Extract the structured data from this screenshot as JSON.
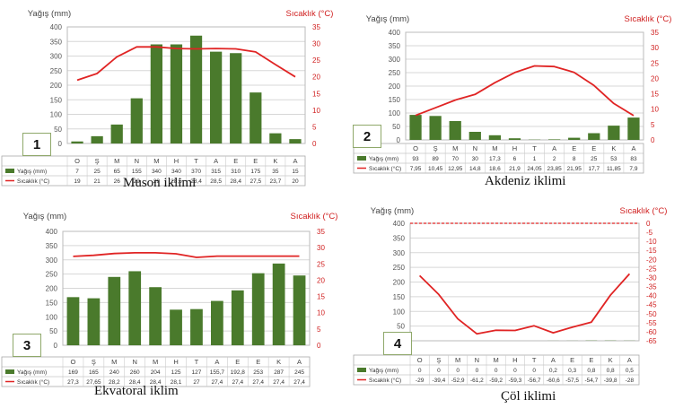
{
  "chart_data": [
    {
      "type": "bar",
      "number": "1",
      "caption": "Muson iklimi",
      "left_axis_title": "Yağış (mm)",
      "right_axis_title": "Sıcaklık (°C)",
      "left_ticks": [
        "0",
        "50",
        "100",
        "150",
        "200",
        "250",
        "300",
        "350",
        "400"
      ],
      "right_ticks": [
        "0",
        "5",
        "10",
        "15",
        "20",
        "25",
        "30",
        "35"
      ],
      "ylim_left": [
        0,
        400
      ],
      "ylim_right": [
        0,
        35
      ],
      "categories": [
        "O",
        "Ş",
        "M",
        "N",
        "M",
        "H",
        "T",
        "A",
        "E",
        "E",
        "K",
        "A"
      ],
      "series": [
        {
          "name": "Yağış (mm)",
          "kind": "bar",
          "values": [
            7,
            25,
            65,
            155,
            340,
            340,
            370,
            315,
            310,
            175,
            35,
            15
          ],
          "labels": [
            "7",
            "25",
            "65",
            "155",
            "340",
            "340",
            "370",
            "315",
            "310",
            "175",
            "35",
            "15"
          ]
        },
        {
          "name": "Sıcaklık (°C)",
          "kind": "line",
          "values": [
            19,
            21,
            26,
            29,
            29,
            28.5,
            28.4,
            28.5,
            28.4,
            27.5,
            23.7,
            20
          ],
          "labels": [
            "19",
            "21",
            "26",
            "29",
            "29",
            "28,5",
            "28,4",
            "28,5",
            "28,4",
            "27,5",
            "23,7",
            "20"
          ]
        }
      ]
    },
    {
      "type": "bar",
      "number": "2",
      "caption": "Akdeniz iklimi",
      "left_axis_title": "Yağış (mm)",
      "right_axis_title": "Sıcaklık (°C)",
      "left_ticks": [
        "0",
        "50",
        "100",
        "150",
        "200",
        "250",
        "300",
        "350",
        "400"
      ],
      "right_ticks": [
        "0",
        "5",
        "10",
        "15",
        "20",
        "25",
        "30",
        "35"
      ],
      "ylim_left": [
        0,
        400
      ],
      "ylim_right": [
        0,
        35
      ],
      "categories": [
        "O",
        "Ş",
        "M",
        "N",
        "M",
        "H",
        "T",
        "A",
        "E",
        "E",
        "K",
        "A"
      ],
      "series": [
        {
          "name": "Yağış (mm)",
          "kind": "bar",
          "values": [
            93,
            89,
            70,
            30,
            17.3,
            6,
            1,
            2,
            8,
            25,
            53,
            83
          ],
          "labels": [
            "93",
            "89",
            "70",
            "30",
            "17,3",
            "6",
            "1",
            "2",
            "8",
            "25",
            "53",
            "83"
          ]
        },
        {
          "name": "Sıcaklık (°C)",
          "kind": "line",
          "values": [
            7.95,
            10.45,
            12.95,
            14.8,
            18.6,
            21.9,
            24.05,
            23.85,
            21.95,
            17.7,
            11.85,
            7.9
          ],
          "labels": [
            "7,95",
            "10,45",
            "12,95",
            "14,8",
            "18,6",
            "21,9",
            "24,05",
            "23,85",
            "21,95",
            "17,7",
            "11,85",
            "7,9"
          ]
        }
      ]
    },
    {
      "type": "bar",
      "number": "3",
      "caption": "Ekvatoral iklim",
      "left_axis_title": "Yağış (mm)",
      "right_axis_title": "Sıcaklık (°C)",
      "left_ticks": [
        "0",
        "50",
        "100",
        "150",
        "200",
        "250",
        "300",
        "350",
        "400"
      ],
      "right_ticks": [
        "0",
        "5",
        "10",
        "15",
        "20",
        "25",
        "30",
        "35"
      ],
      "ylim_left": [
        0,
        400
      ],
      "ylim_right": [
        0,
        35
      ],
      "categories": [
        "O",
        "Ş",
        "M",
        "N",
        "M",
        "H",
        "T",
        "A",
        "E",
        "E",
        "K",
        "A"
      ],
      "series": [
        {
          "name": "Yağış (mm)",
          "kind": "bar",
          "values": [
            169,
            165,
            240,
            260,
            204,
            125,
            127,
            155.7,
            192.8,
            253,
            287,
            245
          ],
          "labels": [
            "169",
            "165",
            "240",
            "260",
            "204",
            "125",
            "127",
            "155,7",
            "192,8",
            "253",
            "287",
            "245"
          ]
        },
        {
          "name": "Sıcaklık (°C)",
          "kind": "line",
          "values": [
            27.3,
            27.65,
            28.2,
            28.4,
            28.4,
            28.1,
            27,
            27.4,
            27.4,
            27.4,
            27.4,
            27.4
          ],
          "labels": [
            "27,3",
            "27,65",
            "28,2",
            "28,4",
            "28,4",
            "28,1",
            "27",
            "27,4",
            "27,4",
            "27,4",
            "27,4",
            "27,4"
          ]
        }
      ]
    },
    {
      "type": "bar",
      "number": "4",
      "caption": "Çöl iklimi",
      "left_axis_title": "Yağış (mm)",
      "right_axis_title": "Sıcaklık (°C)",
      "left_ticks": [
        "0",
        "50",
        "100",
        "150",
        "200",
        "250",
        "300",
        "350",
        "400"
      ],
      "right_ticks": [
        "0",
        "-5",
        "-10",
        "-15",
        "-20",
        "-25",
        "-30",
        "-35",
        "-40",
        "-45",
        "-50",
        "-55",
        "-60",
        "-65"
      ],
      "ylim_left": [
        0,
        400
      ],
      "ylim_right": [
        -65,
        0
      ],
      "categories": [
        "O",
        "Ş",
        "M",
        "N",
        "M",
        "H",
        "T",
        "A",
        "E",
        "E",
        "K",
        "A"
      ],
      "series": [
        {
          "name": "Yağış (mm)",
          "kind": "bar",
          "values": [
            0,
            0,
            0,
            0,
            0,
            0,
            0,
            0.2,
            0.3,
            0.8,
            0.8,
            0.5
          ],
          "labels": [
            "0",
            "0",
            "0",
            "0",
            "0",
            "0",
            "0",
            "0,2",
            "0,3",
            "0,8",
            "0,8",
            "0,5"
          ]
        },
        {
          "name": "Sıcaklık (°C)",
          "kind": "line",
          "values": [
            -29,
            -39.4,
            -52.9,
            -61.2,
            -59.2,
            -59.3,
            -56.7,
            -60.6,
            -57.5,
            -54.7,
            -39.8,
            -28
          ],
          "labels": [
            "-29",
            "-39,4",
            "-52,9",
            "-61,2",
            "-59,2",
            "-59,3",
            "-56,7",
            "-60,6",
            "-57,5",
            "-54,7",
            "-39,8",
            "-28"
          ]
        }
      ]
    }
  ],
  "colors": {
    "bar": "#4a7a2c",
    "line": "#e02424",
    "grid": "#d7d7d7"
  }
}
